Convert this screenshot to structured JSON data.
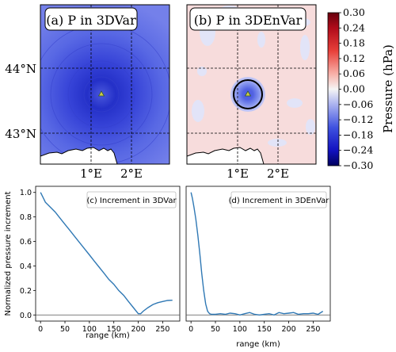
{
  "chart_data": [
    {
      "type": "heatmap",
      "panel": "a",
      "title": "(a) P in 3DVar",
      "y_ticks": [
        "44°N",
        "43°N"
      ],
      "x_ticks": [
        "1°E",
        "2°E"
      ],
      "field": "broad negative pressure increment centered near 1.3°E, 43.6°N",
      "center_value": -0.22,
      "edge_value": -0.12,
      "decay_range_km": 200
    },
    {
      "type": "heatmap",
      "panel": "b",
      "title": "(b) P in 3DEnVar",
      "x_ticks": [
        "1°E",
        "2°E"
      ],
      "field": "localized negative pressure increment centered near 1.3°E, 43.6°N, near-zero elsewhere",
      "center_value": -0.14,
      "edge_value": 0.0,
      "decay_range_km": 40
    },
    {
      "type": "colorbar",
      "label": "Pressure (hPa)",
      "ticks": [
        "0.30",
        "0.24",
        "0.18",
        "0.12",
        "0.06",
        "0.00",
        "−0.06",
        "−0.12",
        "−0.18",
        "−0.24",
        "−0.30"
      ],
      "range": [
        -0.3,
        0.3
      ]
    },
    {
      "type": "line",
      "panel": "c",
      "title": "(c) Increment in 3DVar",
      "xlabel": "range (km)",
      "ylabel": "Normalized pressure increment",
      "x_ticks": [
        "0",
        "50",
        "100",
        "150",
        "200",
        "250"
      ],
      "y_ticks": [
        "0.0",
        "0.2",
        "0.4",
        "0.6",
        "0.8",
        "1.0"
      ],
      "xlim": [
        -10,
        285
      ],
      "ylim": [
        -0.05,
        1.05
      ],
      "x": [
        0,
        5,
        10,
        20,
        30,
        40,
        50,
        60,
        70,
        80,
        90,
        100,
        110,
        120,
        130,
        140,
        150,
        160,
        170,
        180,
        190,
        200,
        205,
        210,
        220,
        230,
        240,
        250,
        260,
        270
      ],
      "y": [
        1.0,
        0.96,
        0.92,
        0.88,
        0.84,
        0.79,
        0.74,
        0.69,
        0.64,
        0.59,
        0.54,
        0.49,
        0.44,
        0.39,
        0.34,
        0.29,
        0.25,
        0.2,
        0.16,
        0.11,
        0.06,
        0.01,
        0.01,
        0.03,
        0.06,
        0.085,
        0.1,
        0.11,
        0.118,
        0.12
      ]
    },
    {
      "type": "line",
      "panel": "d",
      "title": "(d) Increment in 3DEnVar",
      "xlabel": "range (km)",
      "x_ticks": [
        "0",
        "50",
        "100",
        "150",
        "200",
        "250"
      ],
      "xlim": [
        -10,
        285
      ],
      "ylim": [
        -0.05,
        1.05
      ],
      "x": [
        0,
        3,
        6,
        10,
        14,
        18,
        22,
        26,
        30,
        34,
        38,
        42,
        50,
        60,
        70,
        80,
        90,
        100,
        110,
        120,
        130,
        140,
        150,
        160,
        170,
        180,
        190,
        200,
        210,
        220,
        230,
        240,
        250,
        260,
        270
      ],
      "y": [
        1.0,
        0.95,
        0.88,
        0.78,
        0.65,
        0.5,
        0.34,
        0.2,
        0.09,
        0.03,
        0.01,
        0.005,
        0.005,
        0.01,
        0.005,
        0.015,
        0.01,
        0.0,
        0.01,
        0.02,
        0.005,
        0.0,
        0.005,
        0.01,
        0.0,
        0.02,
        0.01,
        0.015,
        0.02,
        0.005,
        0.01,
        0.01,
        0.015,
        0.005,
        0.03
      ]
    }
  ]
}
